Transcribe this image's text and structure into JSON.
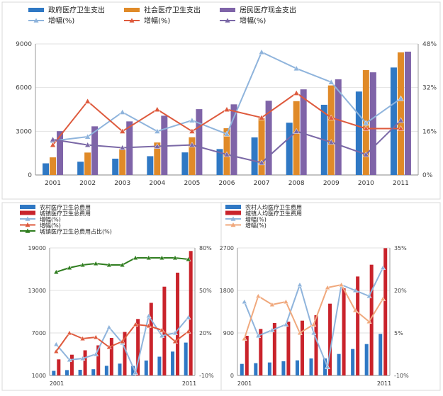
{
  "chart_data": [
    {
      "type": "bar+line",
      "title": "",
      "categories": [
        "2001",
        "2002",
        "2003",
        "2004",
        "2005",
        "2006",
        "2007",
        "2008",
        "2009",
        "2010",
        "2011"
      ],
      "y_left": {
        "range": [
          0,
          9000
        ],
        "ticks": [
          "0",
          "3000",
          "6000",
          "9000"
        ]
      },
      "y_right": {
        "range": [
          0,
          48
        ],
        "ticks": [
          "0%",
          "16%",
          "32%",
          "48%"
        ]
      },
      "bar_series": [
        {
          "name": "政府医疗卫生支出",
          "color": "#2f78c4",
          "values": [
            800,
            910,
            1120,
            1290,
            1550,
            1780,
            2580,
            3590,
            4820,
            5730,
            7380
          ]
        },
        {
          "name": "社会医疗卫生支出",
          "color": "#e08a28",
          "values": [
            1210,
            1540,
            1790,
            2230,
            2590,
            3210,
            3900,
            5070,
            6150,
            7200,
            8420
          ]
        },
        {
          "name": "居民医疗现金支出",
          "color": "#7f64a8",
          "values": [
            3010,
            3340,
            3680,
            4070,
            4520,
            4850,
            5100,
            5880,
            6570,
            7050,
            8470
          ]
        }
      ],
      "line_series": [
        {
          "name": "增幅(%)",
          "color": "#8fb4dc",
          "values": [
            12.5,
            14,
            23,
            16,
            20,
            15,
            45,
            39,
            34,
            19,
            28
          ]
        },
        {
          "name": "增幅(%)",
          "color": "#de5a3d",
          "values": [
            11,
            27,
            16,
            24,
            16,
            24,
            21,
            30,
            21,
            17,
            17
          ]
        },
        {
          "name": "增幅(%)",
          "color": "#7a68a6",
          "values": [
            13,
            11,
            10,
            10.5,
            11,
            7.5,
            4.5,
            16,
            12,
            7.5,
            20
          ]
        }
      ]
    },
    {
      "type": "bar+line",
      "categories": [
        "2001",
        "2002",
        "2003",
        "2004",
        "2005",
        "2006",
        "2007",
        "2008",
        "2009",
        "2010",
        "2011"
      ],
      "x_tick_labels": {
        "first": "2001",
        "last": "2011"
      },
      "y_left": {
        "range": [
          1000,
          19000
        ],
        "ticks": [
          "1000",
          "7000",
          "13000",
          "19000"
        ]
      },
      "y_right": {
        "range": [
          -10,
          80
        ],
        "ticks": [
          "-10%",
          "20%",
          "50%",
          "80%"
        ]
      },
      "bar_series": [
        {
          "name": "农村医疗卫生总费用",
          "color": "#2f78c4",
          "values": [
            1650,
            1760,
            1800,
            1880,
            2360,
            2670,
            2350,
            3110,
            3650,
            4370,
            5640
          ]
        },
        {
          "name": "城镇医疗卫生总费用",
          "color": "#c9232b",
          "values": [
            3270,
            3930,
            4550,
            5250,
            6300,
            7140,
            8970,
            11250,
            13530,
            15510,
            18570
          ]
        }
      ],
      "line_series": [
        {
          "name": "增幅(%)",
          "color": "#8fb4dc",
          "values": [
            12,
            1,
            2,
            5,
            24,
            13,
            -8,
            32,
            18,
            20,
            31
          ]
        },
        {
          "name": "增幅(%)",
          "color": "#de5a3d",
          "values": [
            7,
            20,
            16,
            17,
            10,
            14,
            26,
            25,
            22,
            14,
            21
          ]
        },
        {
          "name": "城镇医疗卫生总费用占比(%)",
          "color": "#2f7d1f",
          "values": [
            63,
            66,
            68,
            69,
            68,
            68,
            73,
            73,
            73,
            73,
            72
          ]
        }
      ]
    },
    {
      "type": "bar+line",
      "categories": [
        "2001",
        "2002",
        "2003",
        "2004",
        "2005",
        "2006",
        "2007",
        "2008",
        "2009",
        "2010",
        "2011"
      ],
      "x_tick_labels": {
        "first": "2001",
        "last": "2011"
      },
      "y_left": {
        "range": [
          0,
          2700
        ],
        "ticks": [
          "0",
          "900",
          "1800",
          "2700"
        ]
      },
      "y_right": {
        "range": [
          -10,
          35
        ],
        "ticks": [
          "-10%",
          "5%",
          "20%",
          "35%"
        ]
      },
      "bar_series": [
        {
          "name": "农村人均医疗卫生费用",
          "color": "#2f78c4",
          "values": [
            245,
            260,
            275,
            300,
            320,
            360,
            360,
            455,
            560,
            665,
            880
          ]
        },
        {
          "name": "城镇人均医疗卫生费用",
          "color": "#c9232b",
          "values": [
            840,
            985,
            1110,
            1140,
            1160,
            1275,
            1520,
            1845,
            2095,
            2345,
            2695
          ]
        }
      ],
      "line_series": [
        {
          "name": "增幅(%)",
          "color": "#8fb4dc",
          "values": [
            16,
            4,
            6,
            8,
            22,
            5,
            -7,
            22,
            20,
            18,
            28
          ]
        },
        {
          "name": "增幅(%)",
          "color": "#f0a87c",
          "values": [
            3,
            18,
            15,
            16,
            5,
            8,
            21,
            22,
            13,
            9,
            17
          ]
        }
      ]
    }
  ]
}
